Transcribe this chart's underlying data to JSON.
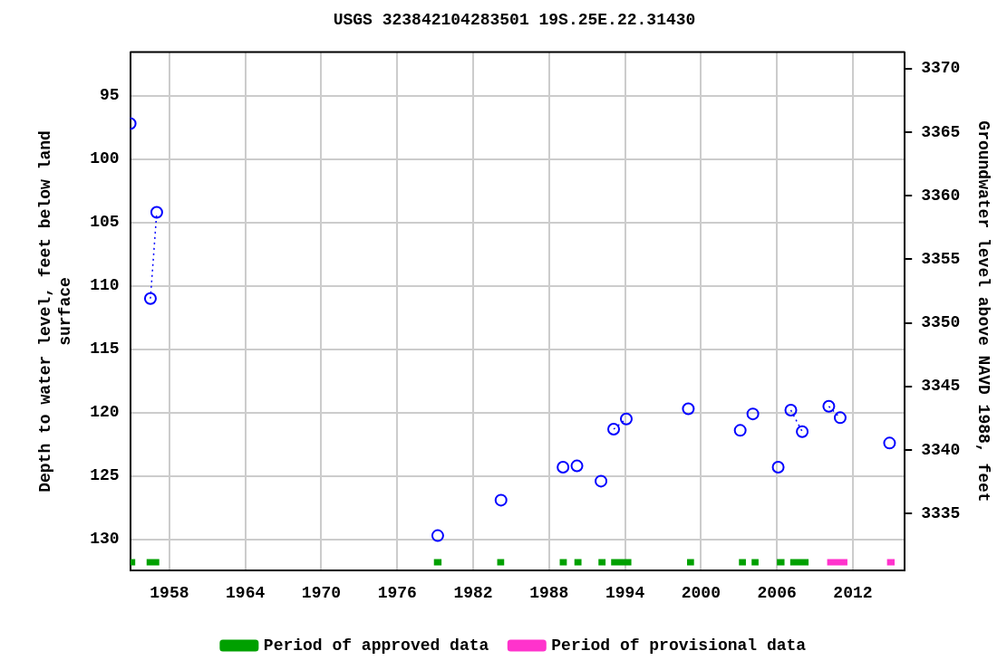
{
  "chart_data": {
    "type": "scatter",
    "title": "USGS 323842104283501 19S.25E.22.31430",
    "ylabel": "Depth to water level, feet below land surface",
    "y2label": "Groundwater level above NAVD 1988, feet",
    "xlim": [
      1954.9,
      2016.1
    ],
    "xticks": [
      1958,
      1964,
      1970,
      1976,
      1982,
      1988,
      1994,
      2000,
      2006,
      2012
    ],
    "ylim": [
      132.47,
      91.57
    ],
    "yticks": [
      95,
      100,
      105,
      110,
      115,
      120,
      125,
      130
    ],
    "y2lim": [
      3330.5,
      3371.3
    ],
    "y2ticks": [
      3335,
      3340,
      3345,
      3350,
      3355,
      3360,
      3365,
      3370
    ],
    "grid": true,
    "legend": "bottom",
    "series": [
      {
        "type": "scatter",
        "marker": "circle",
        "color": "#0000ff",
        "x": [
          1954.9,
          1979.2,
          1984.2,
          1989.1,
          1990.2,
          1992.1,
          1999.0,
          2003.1,
          2004.1,
          2006.1,
          2014.9
        ],
        "values": [
          97.2,
          129.7,
          126.9,
          124.3,
          124.2,
          125.4,
          119.7,
          121.4,
          120.1,
          124.3,
          122.4
        ]
      },
      {
        "type": "line",
        "line_style": "dotted",
        "marker": "circle",
        "color": "#0000ff",
        "x": [
          1956.5,
          1957.0
        ],
        "values": [
          111.0,
          104.2
        ]
      },
      {
        "type": "line",
        "line_style": "dotted",
        "marker": "circle",
        "color": "#0000ff",
        "x": [
          1993.1,
          1994.1
        ],
        "values": [
          121.3,
          120.5
        ]
      },
      {
        "type": "line",
        "line_style": "dotted",
        "marker": "circle",
        "color": "#0000ff",
        "x": [
          2007.1,
          2008.0
        ],
        "values": [
          119.8,
          121.5
        ]
      },
      {
        "type": "line",
        "line_style": "dotted",
        "marker": "circle",
        "color": "#0000ff",
        "x": [
          2010.1,
          2011.0
        ],
        "values": [
          119.5,
          120.4
        ]
      },
      {
        "type": "line",
        "name": "Period of approved data",
        "marker": "none",
        "color": "#00a000",
        "x": [
          1954.9,
          1955.3
        ],
        "values": [
          131.8,
          131.8
        ]
      },
      {
        "type": "line",
        "marker": "none",
        "color": "#00a000",
        "x": [
          1956.2,
          1957.2
        ],
        "values": [
          131.8,
          131.8
        ]
      },
      {
        "type": "line",
        "marker": "none",
        "color": "#00a000",
        "x": [
          1978.9,
          1979.5
        ],
        "values": [
          131.8,
          131.8
        ]
      },
      {
        "type": "line",
        "marker": "none",
        "color": "#00a000",
        "x": [
          1983.9,
          1984.45
        ],
        "values": [
          131.8,
          131.8
        ]
      },
      {
        "type": "line",
        "marker": "none",
        "color": "#00a000",
        "x": [
          1988.84,
          1989.4
        ],
        "values": [
          131.8,
          131.8
        ]
      },
      {
        "type": "line",
        "marker": "none",
        "color": "#00a000",
        "x": [
          1990.0,
          1990.56
        ],
        "values": [
          131.8,
          131.8
        ]
      },
      {
        "type": "line",
        "marker": "none",
        "color": "#00a000",
        "x": [
          1991.9,
          1992.46
        ],
        "values": [
          131.8,
          131.8
        ]
      },
      {
        "type": "line",
        "marker": "none",
        "color": "#00a000",
        "x": [
          1992.9,
          1994.5
        ],
        "values": [
          131.8,
          131.8
        ]
      },
      {
        "type": "line",
        "marker": "none",
        "color": "#00a000",
        "x": [
          1998.9,
          1999.45
        ],
        "values": [
          131.8,
          131.8
        ]
      },
      {
        "type": "line",
        "marker": "none",
        "color": "#00a000",
        "x": [
          2003.0,
          2003.55
        ],
        "values": [
          131.8,
          131.8
        ]
      },
      {
        "type": "line",
        "marker": "none",
        "color": "#00a000",
        "x": [
          2004.0,
          2004.55
        ],
        "values": [
          131.8,
          131.8
        ]
      },
      {
        "type": "line",
        "marker": "none",
        "color": "#00a000",
        "x": [
          2006.0,
          2006.6
        ],
        "values": [
          131.8,
          131.8
        ]
      },
      {
        "type": "line",
        "marker": "none",
        "color": "#00a000",
        "x": [
          2007.05,
          2008.5
        ],
        "values": [
          131.8,
          131.8
        ]
      },
      {
        "type": "line",
        "name": "Period of provisional data",
        "marker": "none",
        "color": "#ff33cc",
        "x": [
          2009.97,
          2011.57
        ],
        "values": [
          131.8,
          131.8
        ]
      },
      {
        "type": "line",
        "marker": "none",
        "color": "#ff33cc",
        "x": [
          2014.7,
          2015.3
        ],
        "values": [
          131.8,
          131.8
        ]
      }
    ]
  }
}
